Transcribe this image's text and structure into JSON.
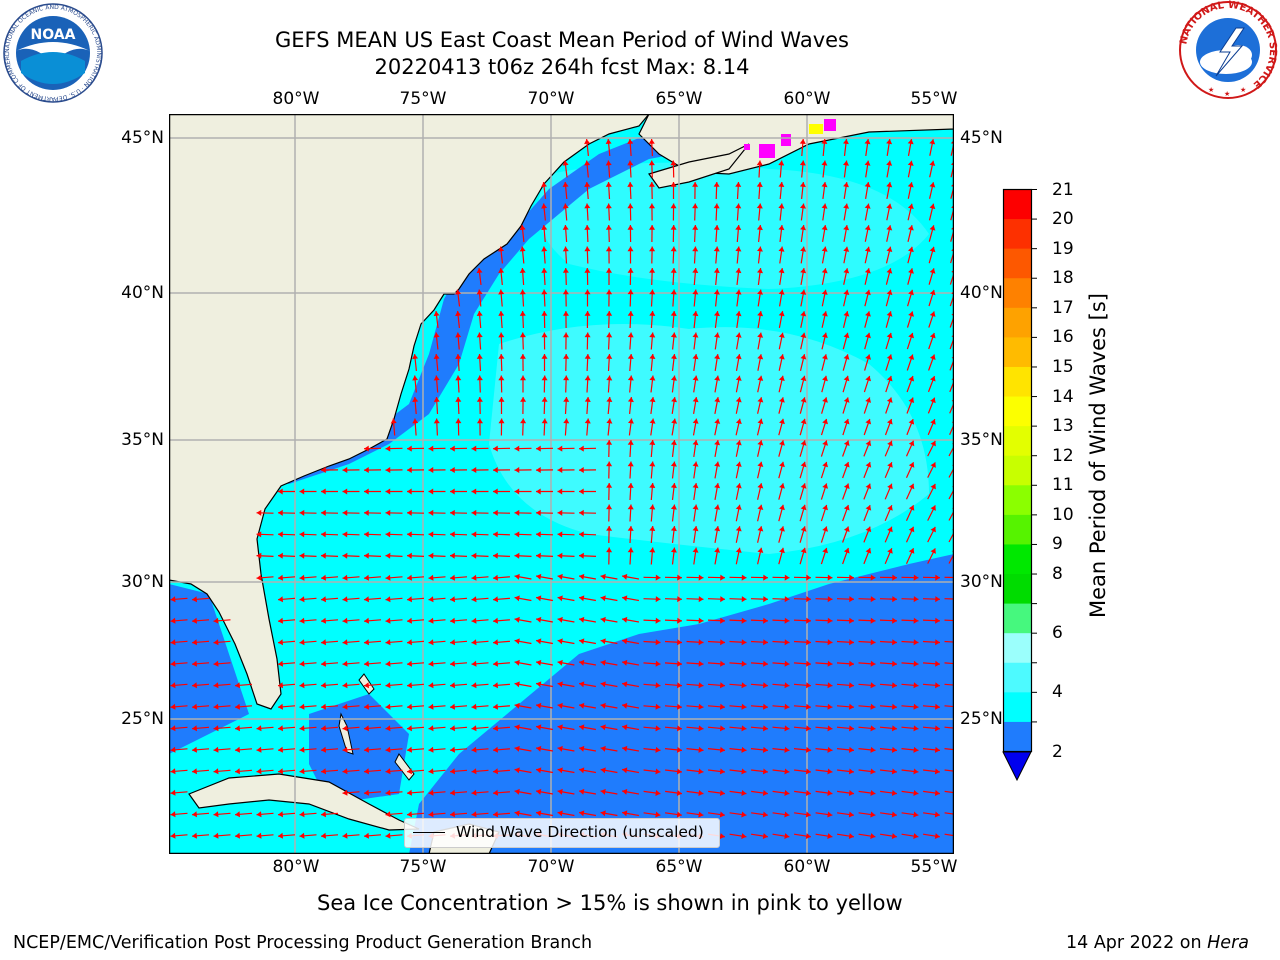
{
  "header": {
    "title_line1": "GEFS MEAN US East Coast Mean Period of Wind Waves",
    "title_line2": "20220413 t06z 264h fcst   Max: 8.14"
  },
  "map": {
    "lon_labels": [
      "80°W",
      "75°W",
      "70°W",
      "65°W",
      "60°W",
      "55°W"
    ],
    "lat_labels": [
      "45°N",
      "40°N",
      "35°N",
      "30°N",
      "25°N"
    ],
    "colors": {
      "land": "#efefdf",
      "band_2_4": "#1f7cfd",
      "band_4_6": "#00ffff",
      "band_6_8": "#4dfaff",
      "arrow": "#ff0000",
      "gridline": "#b0b0b0",
      "coastline": "#000000",
      "sea_ice": "#ff00ff"
    },
    "legend_label": "Wind Wave Direction (unscaled)"
  },
  "colorbar": {
    "title": "Mean Period of Wind Waves [s]",
    "labels": [
      "21",
      "20",
      "19",
      "18",
      "17",
      "16",
      "15",
      "14",
      "13",
      "12",
      "11",
      "10",
      "9",
      "8",
      "6",
      "4",
      "2"
    ],
    "colors": [
      "#fd0000",
      "#fd3000",
      "#fd5800",
      "#fe8100",
      "#fea200",
      "#ffbb00",
      "#ffe400",
      "#fcff00",
      "#e3ff00",
      "#c8ff00",
      "#8bff00",
      "#56f300",
      "#00e800",
      "#00dc00",
      "#46f87e",
      "#9bfffc",
      "#4dfaff",
      "#00ffff",
      "#1f7cfd"
    ],
    "underflow_color": "#0000ee"
  },
  "sea_ice_note": "Sea Ice Concentration > 15% is shown in pink to yellow",
  "footer": {
    "left": "NCEP/EMC/Verification Post Processing Product Generation Branch",
    "date": "14 Apr 2022 on ",
    "machine": "Hera"
  },
  "logos": {
    "noaa_text": "NOAA",
    "noaa_ring": "NATIONAL OCEANIC AND ATMOSPHERIC ADMINISTRATION · U.S. DEPARTMENT OF COMMERCE",
    "nws_ring": "NATIONAL WEATHER SERVICE"
  }
}
